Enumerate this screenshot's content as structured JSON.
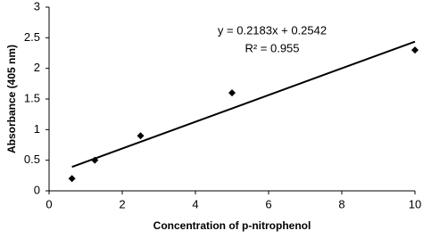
{
  "chart_data": {
    "type": "scatter",
    "x": [
      0.625,
      1.25,
      2.5,
      5,
      10
    ],
    "values": [
      0.2,
      0.5,
      0.9,
      1.6,
      2.3
    ],
    "color": "#000000",
    "xlabel": "Concentration of p-nitrophenol",
    "ylabel": "Absorbance (405 nm)",
    "xlim": [
      0,
      10
    ],
    "xticks": [
      0,
      2,
      4,
      6,
      8,
      10
    ],
    "ylim": [
      0,
      3
    ],
    "yticks": [
      0,
      0.5,
      1,
      1.5,
      2,
      2.5,
      3
    ],
    "grid": false,
    "trendline": {
      "slope": 0.2183,
      "intercept": 0.2542,
      "equation": "y = 0.2183x + 0.2542",
      "r2_label": "R² = 0.955"
    }
  }
}
